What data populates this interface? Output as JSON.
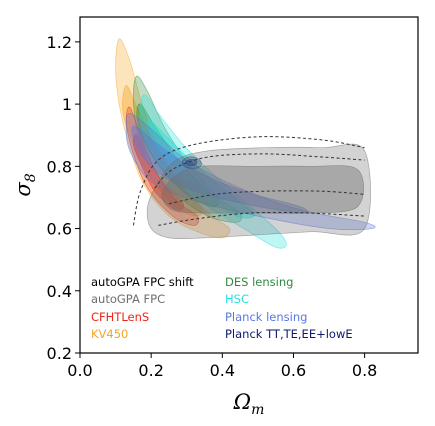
{
  "chart_data": {
    "type": "contour",
    "xlabel": "Ω",
    "xlabel_sub": "m",
    "ylabel": "σ",
    "ylabel_sub": "8",
    "xlim": [
      0.0,
      0.95
    ],
    "ylim": [
      0.2,
      1.28
    ],
    "xticks": [
      0.0,
      0.2,
      0.4,
      0.6,
      0.8
    ],
    "yticks": [
      0.2,
      0.4,
      0.6,
      0.8,
      1.0,
      1.2
    ],
    "xtick_labels": [
      "0.0",
      "0.2",
      "0.4",
      "0.6",
      "0.8"
    ],
    "ytick_labels": [
      "0.2",
      "0.4",
      "0.6",
      "0.8",
      "1",
      "1.2"
    ],
    "grid": false,
    "legend_position": "bottom-left",
    "series": [
      {
        "name": "KV450",
        "color": "#f5a623",
        "regions": [
          {
            "level": "2sigma",
            "points": [
              [
                0.11,
                1.21
              ],
              [
                0.14,
                1.14
              ],
              [
                0.18,
                0.98
              ],
              [
                0.23,
                0.84
              ],
              [
                0.3,
                0.72
              ],
              [
                0.37,
                0.64
              ],
              [
                0.42,
                0.6
              ],
              [
                0.4,
                0.57
              ],
              [
                0.33,
                0.59
              ],
              [
                0.25,
                0.64
              ],
              [
                0.18,
                0.74
              ],
              [
                0.14,
                0.86
              ],
              [
                0.11,
                1.0
              ],
              [
                0.1,
                1.12
              ]
            ]
          },
          {
            "level": "1sigma",
            "points": [
              [
                0.13,
                1.06
              ],
              [
                0.16,
                0.99
              ],
              [
                0.21,
                0.87
              ],
              [
                0.28,
                0.74
              ],
              [
                0.34,
                0.67
              ],
              [
                0.33,
                0.64
              ],
              [
                0.27,
                0.67
              ],
              [
                0.2,
                0.76
              ],
              [
                0.15,
                0.87
              ],
              [
                0.12,
                0.98
              ]
            ]
          }
        ]
      },
      {
        "name": "DES lensing",
        "color": "#2e8b3e",
        "regions": [
          {
            "level": "2sigma",
            "points": [
              [
                0.16,
                1.09
              ],
              [
                0.19,
                1.04
              ],
              [
                0.24,
                0.92
              ],
              [
                0.31,
                0.8
              ],
              [
                0.39,
                0.7
              ],
              [
                0.45,
                0.65
              ],
              [
                0.44,
                0.62
              ],
              [
                0.36,
                0.64
              ],
              [
                0.27,
                0.71
              ],
              [
                0.2,
                0.81
              ],
              [
                0.16,
                0.92
              ],
              [
                0.15,
                1.03
              ]
            ]
          },
          {
            "level": "1sigma",
            "points": [
              [
                0.17,
                1.0
              ],
              [
                0.21,
                0.93
              ],
              [
                0.27,
                0.83
              ],
              [
                0.34,
                0.74
              ],
              [
                0.39,
                0.69
              ],
              [
                0.37,
                0.67
              ],
              [
                0.3,
                0.71
              ],
              [
                0.23,
                0.79
              ],
              [
                0.18,
                0.88
              ],
              [
                0.16,
                0.96
              ]
            ]
          }
        ]
      },
      {
        "name": "HSC",
        "color": "#28e0e0",
        "regions": [
          {
            "level": "2sigma",
            "points": [
              [
                0.18,
                1.03
              ],
              [
                0.22,
                0.97
              ],
              [
                0.29,
                0.87
              ],
              [
                0.37,
                0.78
              ],
              [
                0.46,
                0.69
              ],
              [
                0.55,
                0.6
              ],
              [
                0.58,
                0.55
              ],
              [
                0.55,
                0.54
              ],
              [
                0.46,
                0.6
              ],
              [
                0.36,
                0.67
              ],
              [
                0.27,
                0.75
              ],
              [
                0.2,
                0.85
              ],
              [
                0.17,
                0.95
              ]
            ]
          },
          {
            "level": "1sigma",
            "points": [
              [
                0.19,
                0.95
              ],
              [
                0.24,
                0.9
              ],
              [
                0.31,
                0.82
              ],
              [
                0.39,
                0.74
              ],
              [
                0.47,
                0.67
              ],
              [
                0.49,
                0.64
              ],
              [
                0.44,
                0.64
              ],
              [
                0.35,
                0.71
              ],
              [
                0.27,
                0.79
              ],
              [
                0.21,
                0.87
              ]
            ]
          }
        ]
      },
      {
        "name": "CFHTLenS",
        "color": "#e8271b",
        "regions": [
          {
            "level": "2sigma",
            "points": [
              [
                0.14,
                0.99
              ],
              [
                0.17,
                0.9
              ],
              [
                0.21,
                0.79
              ],
              [
                0.27,
                0.69
              ],
              [
                0.33,
                0.64
              ],
              [
                0.32,
                0.61
              ],
              [
                0.26,
                0.64
              ],
              [
                0.19,
                0.73
              ],
              [
                0.15,
                0.84
              ],
              [
                0.13,
                0.94
              ]
            ]
          },
          {
            "level": "1sigma",
            "points": [
              [
                0.16,
                0.9
              ],
              [
                0.19,
                0.82
              ],
              [
                0.24,
                0.74
              ],
              [
                0.29,
                0.68
              ],
              [
                0.27,
                0.66
              ],
              [
                0.21,
                0.72
              ],
              [
                0.17,
                0.81
              ],
              [
                0.15,
                0.87
              ]
            ]
          }
        ]
      },
      {
        "name": "Planck lensing",
        "color": "#5a78e0",
        "regions": [
          {
            "level": "2sigma",
            "points": [
              [
                0.14,
                0.97
              ],
              [
                0.2,
                0.92
              ],
              [
                0.3,
                0.82
              ],
              [
                0.45,
                0.73
              ],
              [
                0.62,
                0.66
              ],
              [
                0.8,
                0.62
              ],
              [
                0.82,
                0.6
              ],
              [
                0.7,
                0.6
              ],
              [
                0.5,
                0.64
              ],
              [
                0.32,
                0.69
              ],
              [
                0.2,
                0.75
              ],
              [
                0.14,
                0.85
              ],
              [
                0.13,
                0.93
              ]
            ]
          },
          {
            "level": "1sigma",
            "points": [
              [
                0.15,
                0.93
              ],
              [
                0.22,
                0.87
              ],
              [
                0.32,
                0.79
              ],
              [
                0.46,
                0.72
              ],
              [
                0.62,
                0.67
              ],
              [
                0.62,
                0.65
              ],
              [
                0.46,
                0.68
              ],
              [
                0.32,
                0.72
              ],
              [
                0.22,
                0.78
              ],
              [
                0.16,
                0.86
              ]
            ]
          }
        ]
      },
      {
        "name": "Planck TT,TE,EE+lowE",
        "color": "#0c1a6e",
        "regions": [
          {
            "level": "2sigma",
            "points": [
              [
                0.29,
                0.82
              ],
              [
                0.305,
                0.83
              ],
              [
                0.325,
                0.828
              ],
              [
                0.34,
                0.815
              ],
              [
                0.338,
                0.8
              ],
              [
                0.32,
                0.792
              ],
              [
                0.3,
                0.796
              ],
              [
                0.288,
                0.808
              ]
            ]
          },
          {
            "level": "1sigma",
            "points": [
              [
                0.3,
                0.818
              ],
              [
                0.315,
                0.823
              ],
              [
                0.328,
                0.817
              ],
              [
                0.326,
                0.806
              ],
              [
                0.312,
                0.802
              ],
              [
                0.3,
                0.808
              ]
            ]
          }
        ]
      },
      {
        "name": "autoGPA FPC",
        "color": "#6e6e6e",
        "regions": [
          {
            "level": "2sigma",
            "points": [
              [
                0.19,
                0.67
              ],
              [
                0.22,
                0.75
              ],
              [
                0.27,
                0.82
              ],
              [
                0.36,
                0.85
              ],
              [
                0.52,
                0.86
              ],
              [
                0.68,
                0.86
              ],
              [
                0.8,
                0.85
              ],
              [
                0.8,
                0.6
              ],
              [
                0.65,
                0.59
              ],
              [
                0.5,
                0.58
              ],
              [
                0.35,
                0.57
              ],
              [
                0.25,
                0.57
              ],
              [
                0.2,
                0.6
              ]
            ]
          },
          {
            "level": "1sigma",
            "points": [
              [
                0.23,
                0.71
              ],
              [
                0.27,
                0.77
              ],
              [
                0.34,
                0.8
              ],
              [
                0.48,
                0.8
              ],
              [
                0.64,
                0.8
              ],
              [
                0.78,
                0.79
              ],
              [
                0.78,
                0.67
              ],
              [
                0.64,
                0.65
              ],
              [
                0.48,
                0.65
              ],
              [
                0.34,
                0.65
              ],
              [
                0.26,
                0.66
              ]
            ]
          }
        ]
      },
      {
        "name": "autoGPA FPC shift",
        "color": "#333333",
        "style": "dashed",
        "regions": [
          {
            "level": "2sigma",
            "points": [
              [
                0.15,
                0.61
              ],
              [
                0.17,
                0.72
              ],
              [
                0.22,
                0.82
              ],
              [
                0.32,
                0.87
              ],
              [
                0.5,
                0.895
              ],
              [
                0.68,
                0.885
              ],
              [
                0.8,
                0.86
              ]
            ]
          },
          {
            "level": "2sigma-lower",
            "points": [
              [
                0.22,
                0.61
              ],
              [
                0.32,
                0.63
              ],
              [
                0.48,
                0.65
              ],
              [
                0.64,
                0.65
              ],
              [
                0.8,
                0.64
              ]
            ]
          },
          {
            "level": "1sigma",
            "points": [
              [
                0.21,
                0.73
              ],
              [
                0.26,
                0.79
              ],
              [
                0.36,
                0.83
              ],
              [
                0.52,
                0.84
              ],
              [
                0.68,
                0.83
              ],
              [
                0.8,
                0.82
              ]
            ]
          },
          {
            "level": "1sigma-lower",
            "points": [
              [
                0.25,
                0.68
              ],
              [
                0.38,
                0.71
              ],
              [
                0.52,
                0.72
              ],
              [
                0.68,
                0.72
              ],
              [
                0.8,
                0.71
              ]
            ]
          }
        ]
      }
    ],
    "legend": [
      {
        "label": "autoGPA FPC shift",
        "color": "#000000"
      },
      {
        "label": "DES lensing",
        "color": "#2e8b3e"
      },
      {
        "label": "autoGPA FPC",
        "color": "#6e6e6e"
      },
      {
        "label": "HSC",
        "color": "#28e0e0"
      },
      {
        "label": "CFHTLenS",
        "color": "#e8271b"
      },
      {
        "label": "Planck lensing",
        "color": "#5a78e0"
      },
      {
        "label": "KV450",
        "color": "#f5a623"
      },
      {
        "label": "Planck TT,TE,EE+lowE",
        "color": "#0c1a6e"
      }
    ]
  }
}
